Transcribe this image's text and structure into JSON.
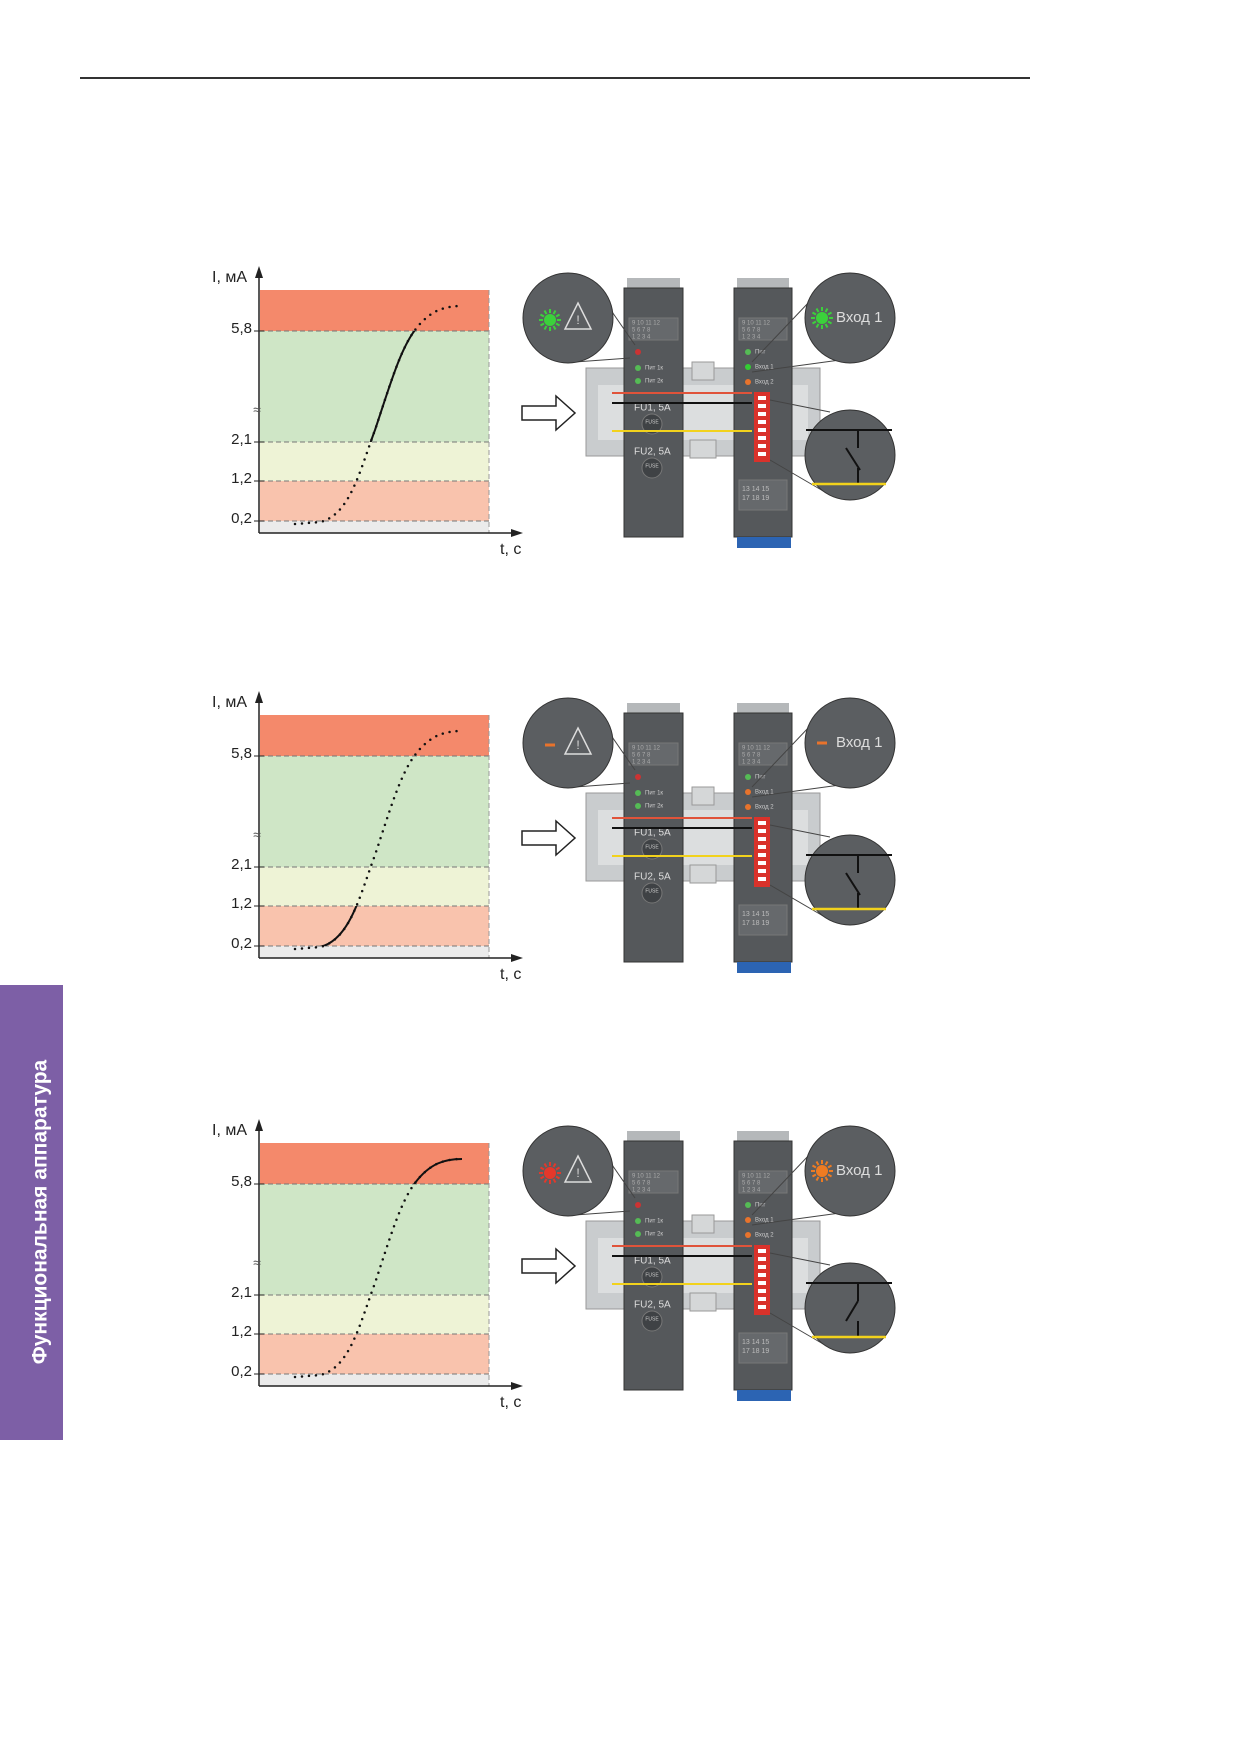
{
  "sidebar": {
    "title": "Функциональная аппаратура"
  },
  "panels": [
    {
      "y_label": "I, мА",
      "x_label": "t, с",
      "ticks": [
        "5,8",
        "2,1",
        "1,2",
        "0,2"
      ],
      "device": {
        "fu1": "FU1, 5A",
        "fu2": "FU2, 5A",
        "input": "Вход 1",
        "pwr1": "Пит 1к",
        "pwr2": "Пит 2к",
        "pwr": "Пит",
        "in1": "Вход 1",
        "in2": "Вход 2",
        "fuse": "FUSE",
        "terminals_top": [
          "9 10 11 12",
          "5 6 7 8",
          "1 2 3 4"
        ],
        "terminals_bottom": [
          "13 14 15",
          "17 18 19"
        ]
      }
    },
    {
      "y_label": "I, мА",
      "x_label": "t, с",
      "ticks": [
        "5,8",
        "2,1",
        "1,2",
        "0,2"
      ],
      "device": {
        "fu1": "FU1, 5A",
        "fu2": "FU2, 5A",
        "input": "Вход 1",
        "pwr1": "Пит 1к",
        "pwr2": "Пит 2к",
        "pwr": "Пит",
        "in1": "Вход 1",
        "in2": "Вход 2",
        "fuse": "FUSE",
        "terminals_top": [
          "9 10 11 12",
          "5 6 7 8",
          "1 2 3 4"
        ],
        "terminals_bottom": [
          "13 14 15",
          "17 18 19"
        ]
      }
    },
    {
      "y_label": "I, мА",
      "x_label": "t, с",
      "ticks": [
        "5,8",
        "2,1",
        "1,2",
        "0,2"
      ],
      "device": {
        "fu1": "FU1, 5A",
        "fu2": "FU2, 5A",
        "input": "Вход 1",
        "pwr1": "Пит 1к",
        "pwr2": "Пит 2к",
        "pwr": "Пит",
        "in1": "Вход 1",
        "in2": "Вход 2",
        "fuse": "FUSE",
        "terminals_top": [
          "9 10 11 12",
          "5 6 7 8",
          "1 2 3 4"
        ],
        "terminals_bottom": [
          "13 14 15",
          "17 18 19"
        ]
      }
    }
  ]
}
